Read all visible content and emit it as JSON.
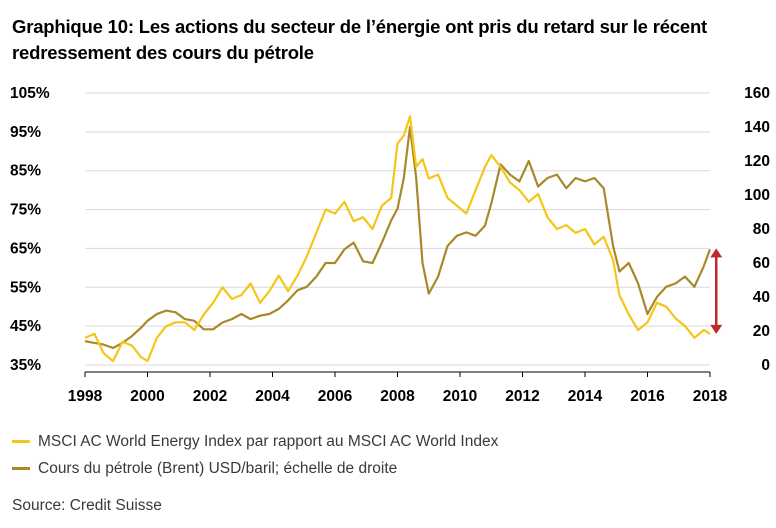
{
  "chart_data": {
    "type": "line",
    "title": "Graphique 10: Les actions du secteur de l’énergie ont pris du retard sur le récent redressement des cours du pétrole",
    "x_ticks": [
      "1998",
      "2000",
      "2002",
      "2004",
      "2006",
      "2008",
      "2010",
      "2012",
      "2014",
      "2016",
      "2018"
    ],
    "xlim": [
      1998,
      2018
    ],
    "y_left": {
      "ticks": [
        "105%",
        "95%",
        "85%",
        "75%",
        "65%",
        "55%",
        "45%",
        "35%"
      ],
      "range": [
        35,
        105
      ]
    },
    "y_right": {
      "ticks": [
        "160",
        "140",
        "120",
        "100",
        "80",
        "60",
        "40",
        "20",
        "0"
      ],
      "range": [
        0,
        160
      ]
    },
    "grid": "horizontal",
    "legend_position": "bottom",
    "series": [
      {
        "name": "MSCI AC World Energy Index par rapport au MSCI AC World Index",
        "axis": "left",
        "color": "#F5C518",
        "x": [
          1998.0,
          1998.3,
          1998.6,
          1998.9,
          1999.2,
          1999.5,
          1999.8,
          2000.0,
          2000.3,
          2000.6,
          2000.9,
          2001.2,
          2001.5,
          2001.8,
          2002.1,
          2002.4,
          2002.7,
          2003.0,
          2003.3,
          2003.6,
          2003.9,
          2004.2,
          2004.5,
          2004.8,
          2005.1,
          2005.4,
          2005.7,
          2006.0,
          2006.3,
          2006.6,
          2006.9,
          2007.2,
          2007.5,
          2007.8,
          2008.0,
          2008.2,
          2008.4,
          2008.6,
          2008.8,
          2009.0,
          2009.3,
          2009.6,
          2009.9,
          2010.2,
          2010.5,
          2010.8,
          2011.0,
          2011.3,
          2011.6,
          2011.9,
          2012.2,
          2012.5,
          2012.8,
          2013.1,
          2013.4,
          2013.7,
          2014.0,
          2014.3,
          2014.6,
          2014.9,
          2015.1,
          2015.4,
          2015.7,
          2016.0,
          2016.3,
          2016.6,
          2016.9,
          2017.2,
          2017.5,
          2017.8,
          2018.0
        ],
        "values": [
          42,
          43,
          38,
          36,
          41,
          40,
          37,
          36,
          42,
          45,
          46,
          46,
          44,
          48,
          51,
          55,
          52,
          53,
          56,
          51,
          54,
          58,
          54,
          58,
          63,
          69,
          75,
          74,
          77,
          72,
          73,
          70,
          76,
          78,
          92,
          94,
          99,
          86,
          88,
          83,
          84,
          78,
          76,
          74,
          80,
          86,
          89,
          86,
          82,
          80,
          77,
          79,
          73,
          70,
          71,
          69,
          70,
          66,
          68,
          62,
          53,
          48,
          44,
          46,
          51,
          50,
          47,
          45,
          42,
          44,
          43
        ]
      },
      {
        "name": "Cours du pétrole (Brent) USD/baril; échelle de droite",
        "axis": "right",
        "color": "#A8892A",
        "x": [
          1998.0,
          1998.3,
          1998.6,
          1998.9,
          1999.2,
          1999.5,
          1999.8,
          2000.0,
          2000.3,
          2000.6,
          2000.9,
          2001.2,
          2001.5,
          2001.8,
          2002.1,
          2002.4,
          2002.7,
          2003.0,
          2003.3,
          2003.6,
          2003.9,
          2004.2,
          2004.5,
          2004.8,
          2005.1,
          2005.4,
          2005.7,
          2006.0,
          2006.3,
          2006.6,
          2006.9,
          2007.2,
          2007.5,
          2007.8,
          2008.0,
          2008.2,
          2008.4,
          2008.6,
          2008.8,
          2009.0,
          2009.3,
          2009.6,
          2009.9,
          2010.2,
          2010.5,
          2010.8,
          2011.0,
          2011.3,
          2011.6,
          2011.9,
          2012.2,
          2012.5,
          2012.8,
          2013.1,
          2013.4,
          2013.7,
          2014.0,
          2014.3,
          2014.6,
          2014.9,
          2015.1,
          2015.4,
          2015.7,
          2016.0,
          2016.3,
          2016.6,
          2016.9,
          2017.2,
          2017.5,
          2017.8,
          2018.0
        ],
        "values": [
          14,
          13,
          12,
          10,
          13,
          17,
          22,
          26,
          30,
          32,
          31,
          27,
          26,
          21,
          21,
          25,
          27,
          30,
          27,
          29,
          30,
          33,
          38,
          44,
          46,
          52,
          60,
          60,
          68,
          72,
          61,
          60,
          72,
          85,
          92,
          110,
          140,
          110,
          60,
          42,
          52,
          70,
          76,
          78,
          76,
          82,
          95,
          118,
          112,
          108,
          120,
          105,
          110,
          112,
          104,
          110,
          108,
          110,
          104,
          70,
          55,
          60,
          48,
          30,
          40,
          46,
          48,
          52,
          46,
          58,
          68
        ]
      }
    ],
    "annotations": [
      {
        "type": "double-arrow",
        "color": "#C0282A",
        "x": 2018.2,
        "y_left_range": [
          43,
          65
        ]
      }
    ]
  },
  "legend": [
    {
      "label": "MSCI AC World Energy Index par rapport au MSCI AC World Index",
      "color": "#F5C518"
    },
    {
      "label": "Cours du pétrole (Brent) USD/baril; échelle de droite",
      "color": "#A8892A"
    }
  ],
  "source": "Source: Credit Suisse"
}
